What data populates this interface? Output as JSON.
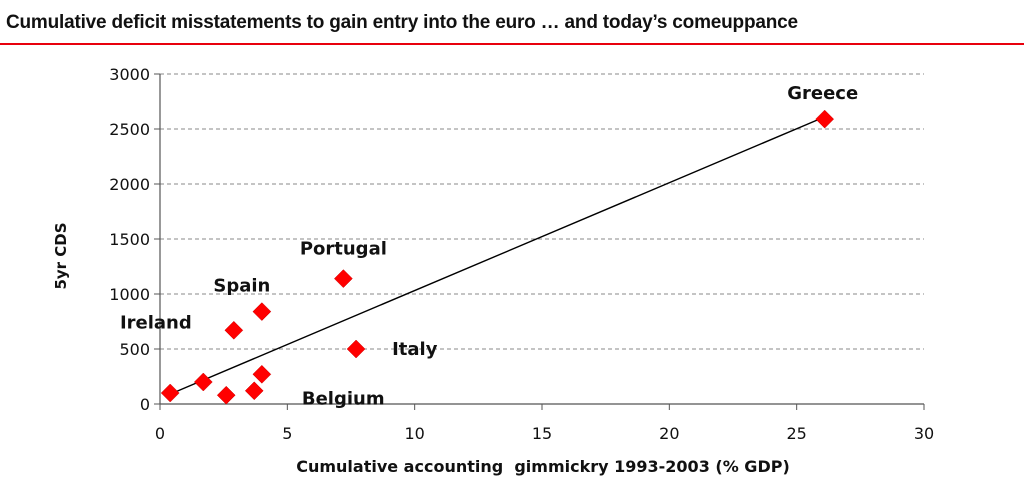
{
  "title": "Cumulative deficit misstatements to gain entry into the euro … and today’s comeuppance",
  "colors": {
    "accent": "#e8000d",
    "marker": "#ff0000",
    "axis": "#555555",
    "grid": "#8a8a8a",
    "trend": "#000000"
  },
  "chart_data": {
    "type": "scatter",
    "xlabel": "Cumulative accounting  gimmickry 1993-2003 (% GDP)",
    "ylabel": "5yr CDS",
    "xlim": [
      0,
      30
    ],
    "ylim": [
      0,
      3000
    ],
    "x_ticks": [
      "0",
      "5",
      "10",
      "15",
      "20",
      "25",
      "30"
    ],
    "y_ticks": [
      "0",
      "500",
      "1000",
      "1500",
      "2000",
      "2500",
      "3000"
    ],
    "grid": "horizontal dashed",
    "points": [
      {
        "x": 0.4,
        "y": 100,
        "label": ""
      },
      {
        "x": 1.7,
        "y": 200,
        "label": ""
      },
      {
        "x": 2.6,
        "y": 80,
        "label": ""
      },
      {
        "x": 3.7,
        "y": 120,
        "label": ""
      },
      {
        "x": 4.0,
        "y": 270,
        "label": "Belgium"
      },
      {
        "x": 2.9,
        "y": 670,
        "label": "Ireland"
      },
      {
        "x": 4.0,
        "y": 840,
        "label": "Spain"
      },
      {
        "x": 7.2,
        "y": 1140,
        "label": "Portugal"
      },
      {
        "x": 7.7,
        "y": 500,
        "label": "Italy"
      },
      {
        "x": 26.1,
        "y": 2590,
        "label": "Greece"
      }
    ],
    "trendline": {
      "x": [
        0.4,
        26.1
      ],
      "y": [
        90,
        2610
      ]
    }
  }
}
